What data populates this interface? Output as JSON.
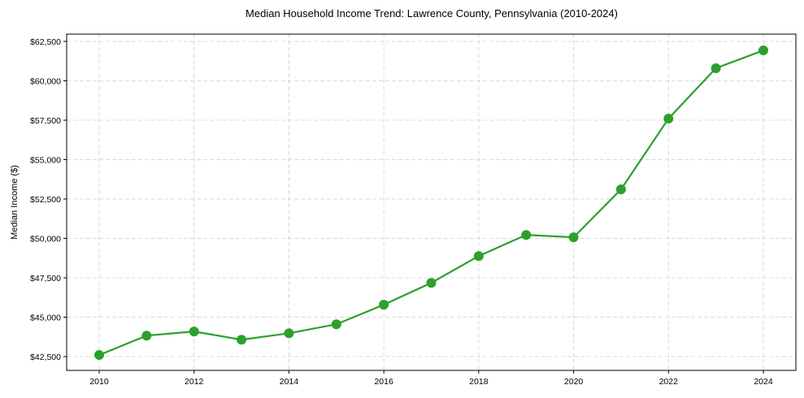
{
  "chart_data": {
    "type": "line",
    "title": "Median Household Income Trend: Lawrence County, Pennsylvania (2010-2024)",
    "xlabel": "",
    "ylabel": "Median Income ($)",
    "x": [
      2010,
      2011,
      2012,
      2013,
      2014,
      2015,
      2016,
      2017,
      2018,
      2019,
      2020,
      2021,
      2022,
      2023,
      2024
    ],
    "series": [
      {
        "name": "Median Household Income",
        "color": "#2ca02c",
        "values": [
          42600,
          43830,
          44090,
          43570,
          43980,
          44550,
          45790,
          47180,
          48880,
          50220,
          50070,
          53110,
          57600,
          60800,
          61930
        ]
      }
    ],
    "xticks": [
      2010,
      2012,
      2014,
      2016,
      2018,
      2020,
      2022,
      2024
    ],
    "xtick_labels": [
      "2010",
      "2012",
      "2014",
      "2016",
      "2018",
      "2020",
      "2022",
      "2024"
    ],
    "yticks": [
      42500,
      45000,
      47500,
      50000,
      52500,
      55000,
      57500,
      60000,
      62500
    ],
    "ytick_labels": [
      "$42,500",
      "$45,000",
      "$47,500",
      "$50,000",
      "$52,500",
      "$55,000",
      "$57,500",
      "$60,000",
      "$62,500"
    ],
    "xlim": [
      2009.3,
      2024.7
    ],
    "ylim": [
      41600,
      63000
    ],
    "grid": true,
    "legend": null
  }
}
